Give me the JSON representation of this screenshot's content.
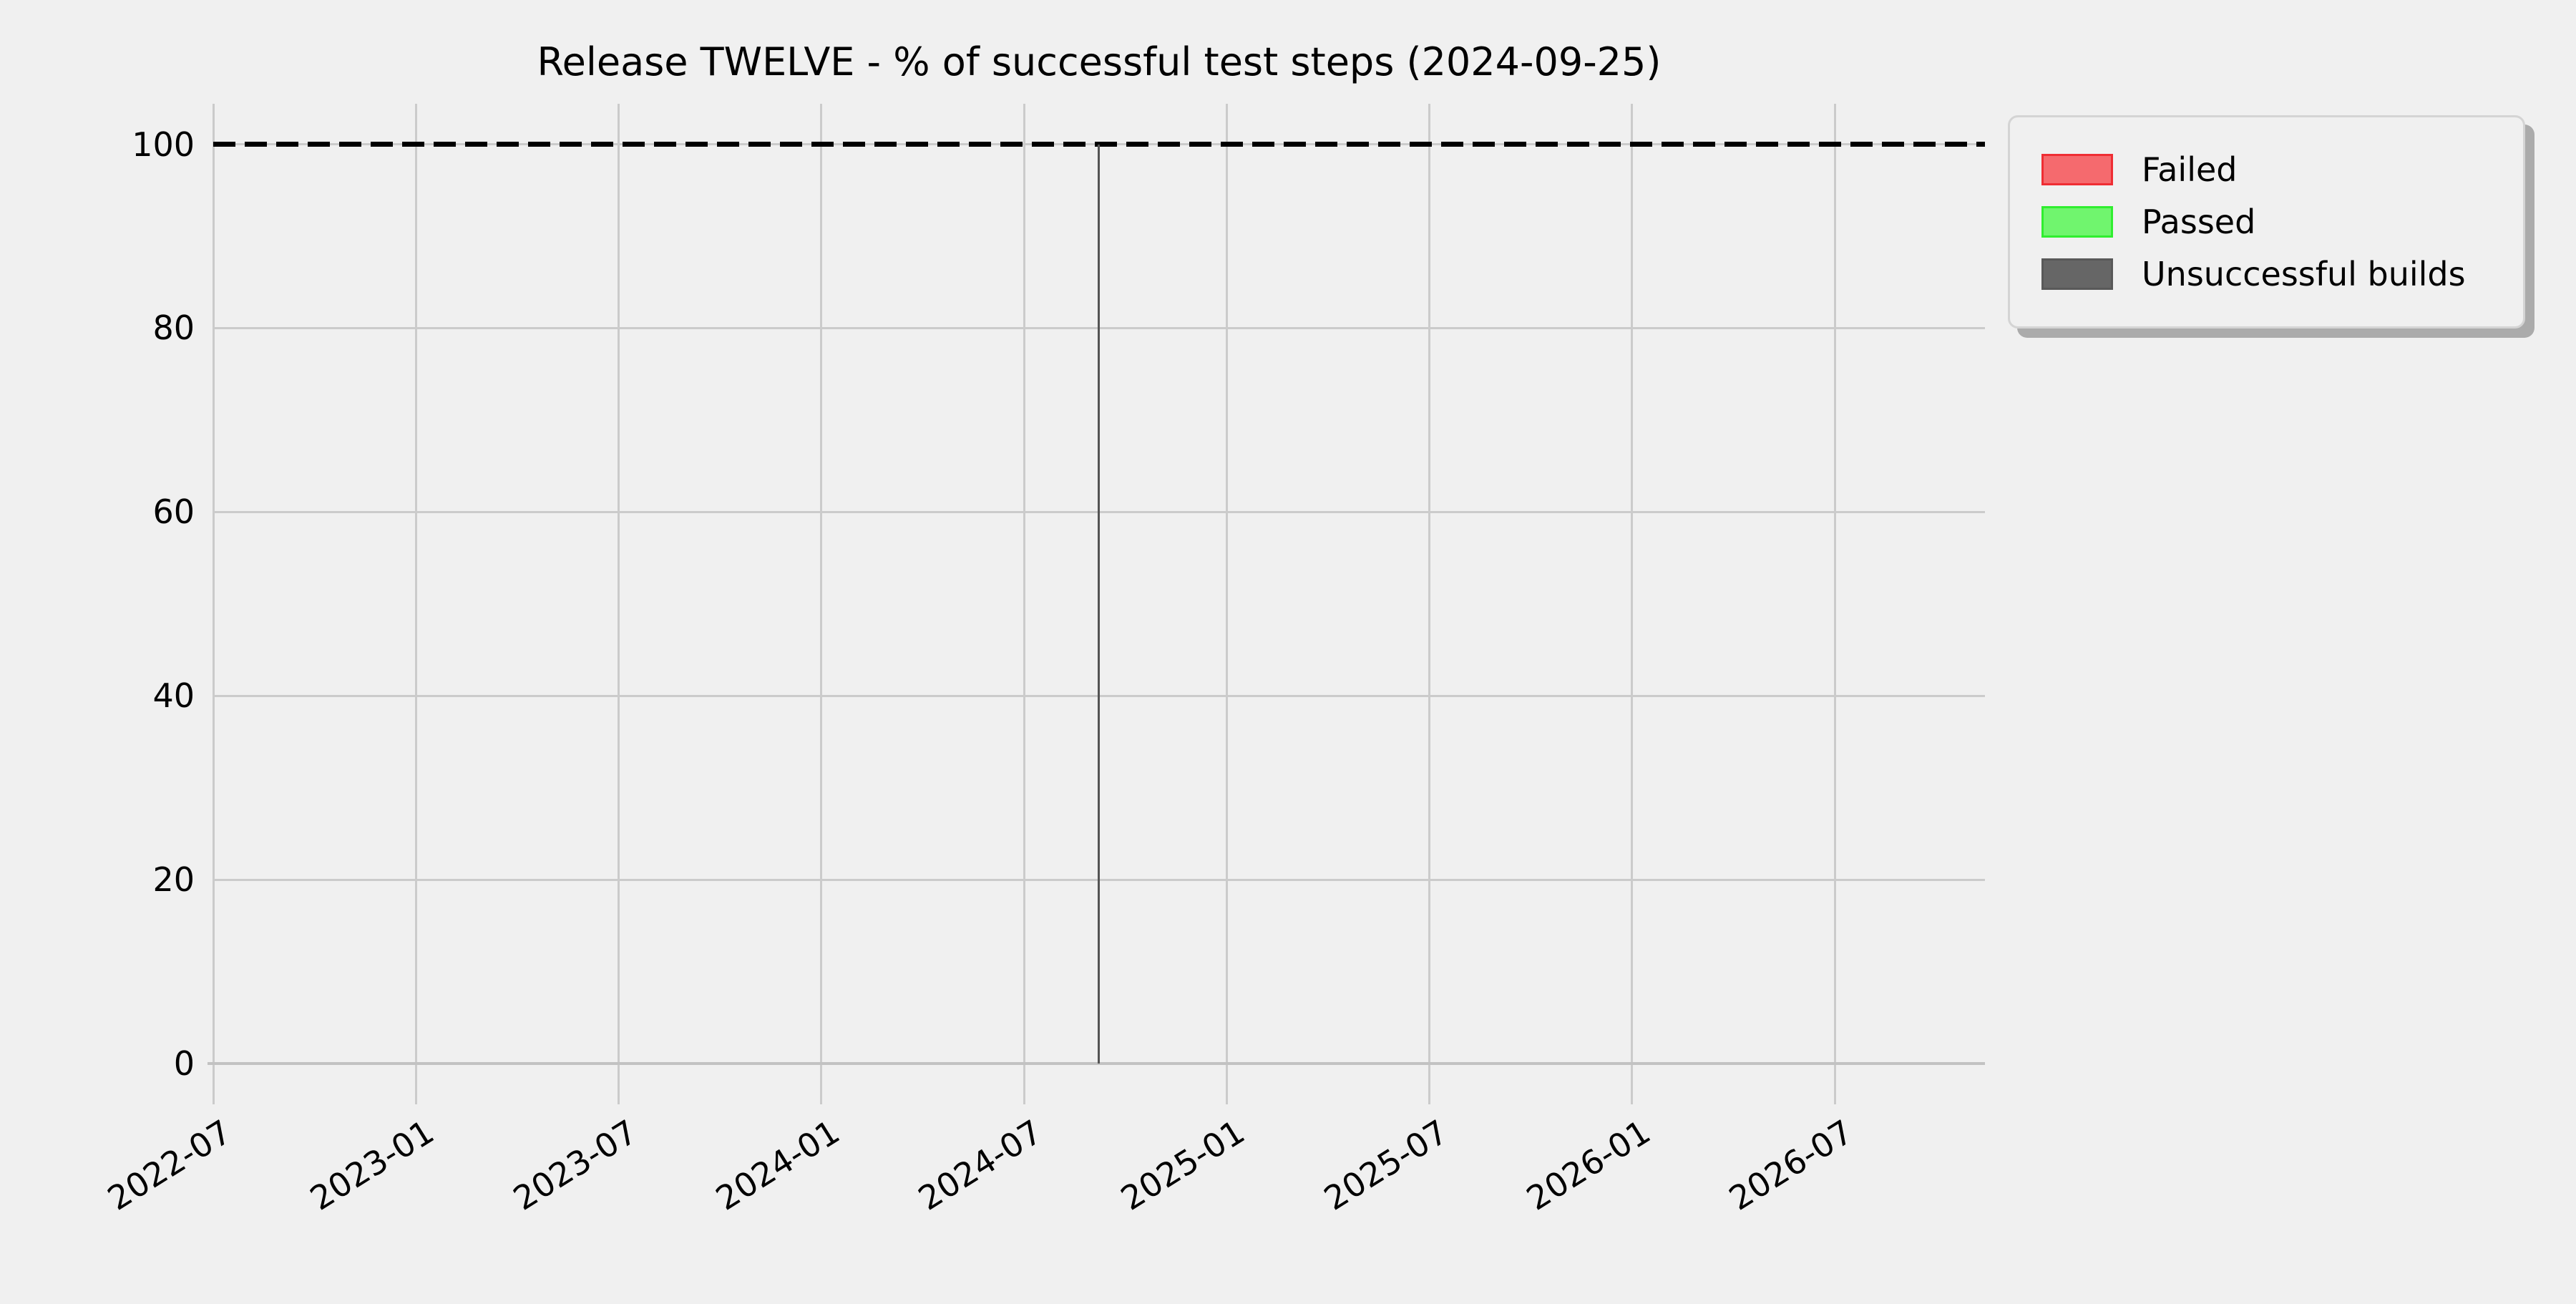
{
  "figure": {
    "background_color": "#f0f0f0",
    "grid_color": "#cbcbcb",
    "text_color": "#000000"
  },
  "chart_data": {
    "type": "bar",
    "title": "Release TWELVE - % of successful test steps (2024-09-25)",
    "xlabel": "",
    "ylabel": "",
    "x_axis_type": "date",
    "x_tick_labels": [
      "2022-07",
      "2023-01",
      "2023-07",
      "2024-01",
      "2024-07",
      "2025-01",
      "2025-07",
      "2026-01",
      "2026-07"
    ],
    "y_ticks": [
      0,
      20,
      40,
      60,
      80,
      100
    ],
    "ylim": [
      0,
      104.4
    ],
    "grid": true,
    "reference_line": {
      "y": 100,
      "style": "dashed",
      "color": "#000000"
    },
    "series": [
      {
        "name": "Failed",
        "fill_color": "#f56a6e",
        "edge_color": "#ef2d33",
        "points": []
      },
      {
        "name": "Passed",
        "fill_color": "#70f56e",
        "edge_color": "#2fee2f",
        "points": []
      },
      {
        "name": "Unsuccessful builds",
        "fill_color": "#666666",
        "edge_color": "#595959",
        "points": [
          {
            "date": "2024-09-25",
            "value": 100,
            "x_fraction": 0.4996
          }
        ]
      }
    ],
    "legend": {
      "position": "upper-right-outside",
      "entries": [
        "Failed",
        "Passed",
        "Unsuccessful builds"
      ]
    }
  }
}
